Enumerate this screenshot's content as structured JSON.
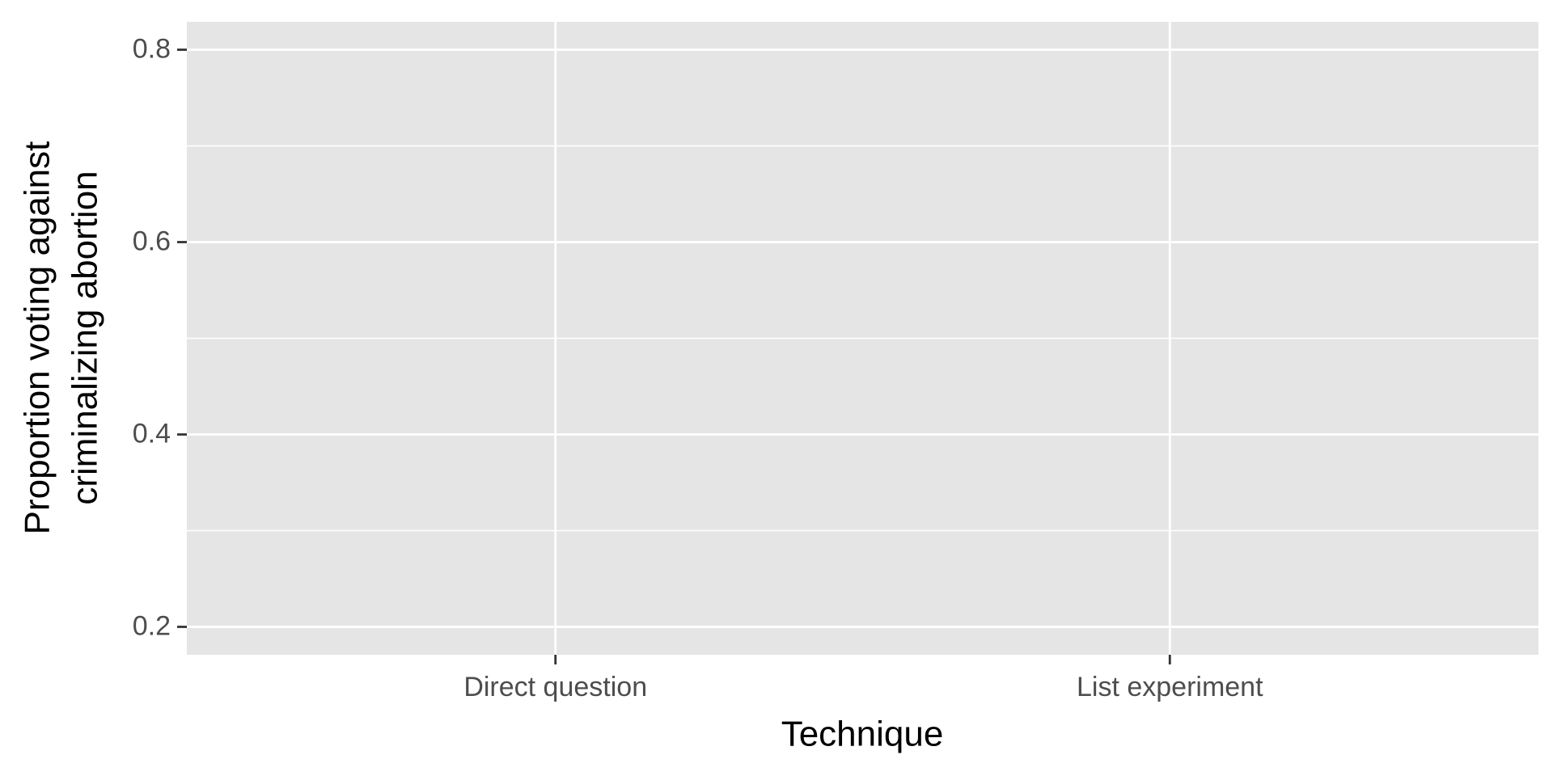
{
  "chart_data": {
    "type": "scatter",
    "categories": [
      "Direct question",
      "List experiment"
    ],
    "xlabel": "Technique",
    "ylabel": [
      "Proportion voting against",
      "criminalizing abortion"
    ],
    "ylim": [
      0.171,
      0.829
    ],
    "yticks": [
      0.2,
      0.4,
      0.6,
      0.8
    ],
    "minor_yticks": [
      0.3,
      0.5,
      0.7
    ],
    "grid": true,
    "panel_color": "#e5e5e5",
    "grid_color": "#ffffff"
  }
}
